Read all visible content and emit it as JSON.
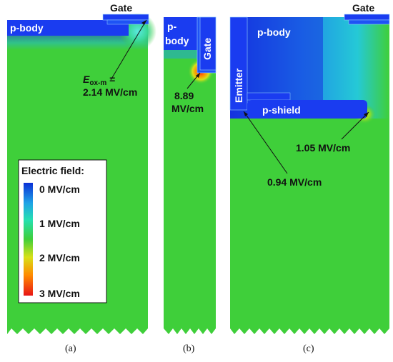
{
  "panels": {
    "a": {
      "caption": "(a)",
      "gate": "Gate",
      "pbody": "p-body",
      "annotation_symbol": "E",
      "annotation_subscript": "ox-m",
      "annotation_eq": " =",
      "annotation_value": "2.14 MV/cm"
    },
    "b": {
      "caption": "(b)",
      "pbody_line1": "p-",
      "pbody_line2": "body",
      "gate": "Gate",
      "annotation_line1": "8.89",
      "annotation_line2": "MV/cm"
    },
    "c": {
      "caption": "(c)",
      "gate": "Gate",
      "pbody": "p-body",
      "emitter": "Emitter",
      "pshield": "p-shield",
      "annotation_1": "1.05 MV/cm",
      "annotation_2": "0.94 MV/cm"
    }
  },
  "legend": {
    "title": "Electric field:",
    "ticks": [
      "0 MV/cm",
      "1 MV/cm",
      "2 MV/cm",
      "3 MV/cm"
    ],
    "colors": [
      "#0a2fd6",
      "#1ea3e6",
      "#25e0b0",
      "#3fcf3a",
      "#d8e018",
      "#ff8a00",
      "#e81515"
    ]
  },
  "colors": {
    "field_bg": "#3fcf3a",
    "low_field": "#1a3cf0",
    "high_field": "#e81515"
  }
}
